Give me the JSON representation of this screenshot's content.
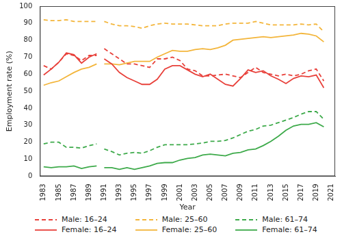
{
  "chart_data": {
    "type": "line",
    "x_label": "Year",
    "y_label": "Employment rate (%)",
    "x": [
      1983,
      1984,
      1985,
      1986,
      1987,
      1988,
      1989,
      1990,
      1990.5,
      1991,
      1992,
      1993,
      1994,
      1995,
      1996,
      1997,
      1998,
      1999,
      2000,
      2001,
      2002,
      2003,
      2004,
      2005,
      2006,
      2007,
      2008,
      2009,
      2010,
      2011,
      2012,
      2013,
      2014,
      2015,
      2016,
      2017,
      2018,
      2019,
      2020
    ],
    "xlim": [
      1982.5,
      2021.5
    ],
    "xticks": [
      1983,
      1985,
      1987,
      1989,
      1991,
      1993,
      1995,
      1997,
      1999,
      2001,
      2003,
      2005,
      2007,
      2009,
      2011,
      2013,
      2015,
      2017,
      2019,
      2021
    ],
    "ylim": [
      0,
      100
    ],
    "yticks": [
      0,
      10,
      20,
      30,
      40,
      50,
      60,
      70,
      80,
      90,
      100
    ],
    "grid": false,
    "legend": "bottom",
    "series": [
      {
        "name": "Male: 16–24",
        "color": "#e8403a",
        "line_style": "dashed",
        "values": [
          65,
          63,
          67,
          72,
          71,
          68,
          71,
          71,
          null,
          75,
          72,
          69,
          66,
          66,
          65,
          64,
          69,
          69,
          70,
          68,
          63,
          62,
          59,
          59,
          59.5,
          60,
          59,
          58,
          61,
          64,
          61,
          60,
          59,
          60,
          59,
          60,
          62,
          63,
          56
        ]
      },
      {
        "name": "Male: 25–60",
        "color": "#f3b53a",
        "line_style": "dashed",
        "values": [
          92,
          91.5,
          91.5,
          92,
          91,
          91,
          91,
          91,
          null,
          91,
          89.5,
          88.5,
          88.5,
          88,
          87,
          88.5,
          89.5,
          90,
          89.5,
          89.5,
          89.5,
          89,
          88.5,
          88.5,
          88.5,
          89.5,
          90,
          90,
          90,
          91,
          90,
          89,
          89,
          89,
          89,
          89.5,
          89,
          89.5,
          85
        ]
      },
      {
        "name": "Male: 61–74",
        "color": "#3daa4a",
        "line_style": "dashed",
        "values": [
          19,
          20,
          20,
          17,
          17,
          16.5,
          18,
          19,
          null,
          16,
          14.5,
          12.5,
          13.5,
          14,
          13.5,
          15,
          17,
          18.5,
          18.5,
          18.5,
          18.5,
          19,
          19.5,
          20.5,
          20.5,
          21,
          22.5,
          24.5,
          26.5,
          27.5,
          29.5,
          30,
          31.5,
          33,
          34.5,
          36.5,
          38,
          38,
          33.5
        ]
      },
      {
        "name": "Female: 16–24",
        "color": "#e8403a",
        "line_style": "solid",
        "values": [
          59.5,
          63,
          67,
          72.5,
          71.5,
          66.5,
          70,
          72,
          null,
          69,
          66,
          61,
          58,
          56,
          54,
          54,
          57,
          63,
          65,
          65,
          62.5,
          60,
          58.5,
          60,
          57,
          54,
          53,
          57.5,
          62.5,
          61,
          62,
          59,
          57,
          54.5,
          57.5,
          59,
          58.5,
          59.5,
          52
        ]
      },
      {
        "name": "Female: 25–60",
        "color": "#f3b53a",
        "line_style": "solid",
        "values": [
          53.5,
          55,
          56,
          58.5,
          61,
          63,
          64,
          66,
          null,
          66,
          66,
          65.5,
          66.5,
          67.5,
          67.5,
          67.5,
          70,
          72,
          74,
          73.5,
          73.5,
          74.5,
          75,
          74.5,
          75.5,
          77,
          80,
          80.5,
          81,
          81.5,
          82,
          81.5,
          82,
          82.5,
          83,
          84,
          83.5,
          82.5,
          79
        ]
      },
      {
        "name": "Female: 61–74",
        "color": "#3daa4a",
        "line_style": "solid",
        "values": [
          5.5,
          5,
          5.5,
          5.5,
          6,
          4.5,
          5.5,
          6,
          null,
          5,
          5,
          4,
          5,
          4,
          5,
          6,
          7.5,
          8,
          8,
          9.5,
          10.5,
          11,
          12.5,
          13,
          12.5,
          12,
          13.5,
          14,
          15.5,
          16,
          18,
          20.5,
          23.5,
          27,
          29.5,
          30.5,
          30.5,
          31.5,
          29
        ]
      }
    ]
  }
}
